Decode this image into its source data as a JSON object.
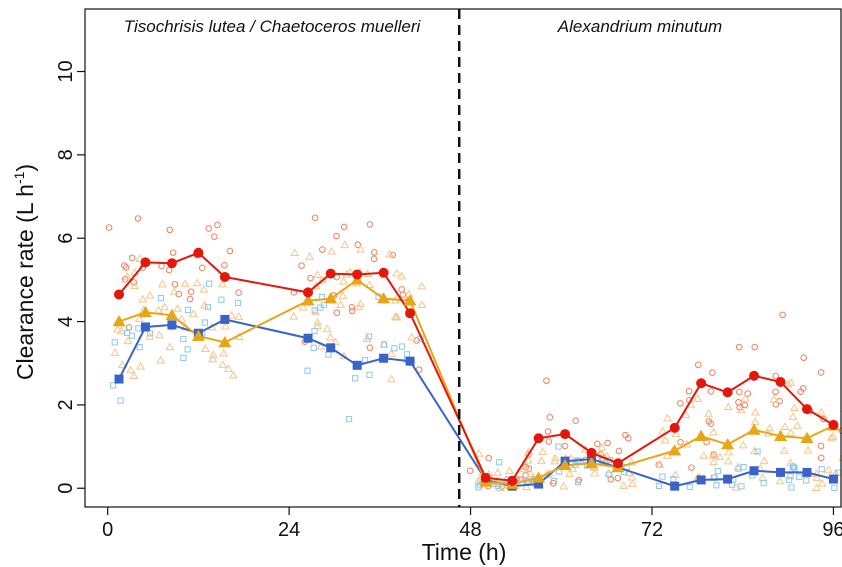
{
  "chart_data": {
    "type": "scatter",
    "xlabel": "Time (h)",
    "ylabel": "Clearance rate (L h⁻¹)",
    "ylabel_main": "Clearance rate (L h",
    "ylabel_sup": "-1",
    "ylabel_close": ")",
    "xlim": [
      -3,
      97
    ],
    "ylim": [
      -0.45,
      11.5
    ],
    "xticks": [
      0,
      24,
      48,
      72,
      96
    ],
    "yticks": [
      0,
      2,
      4,
      6,
      8,
      10
    ],
    "grid": false,
    "legend": "none",
    "divider_x": 46.5,
    "panels": [
      {
        "label": "Tisochrisis lutea / Chaetoceros muelleri"
      },
      {
        "label": "Alexandrium minutum"
      }
    ],
    "colors": {
      "red": "#e3170a",
      "orange": "#e8a617",
      "blue": "#3a63c8",
      "red_light": "#f08060",
      "orange_light": "#f7c58a",
      "blue_light": "#8cc8ee"
    },
    "series": [
      {
        "marker": "circle",
        "color": "#e3170a",
        "x": [
          1.5,
          5,
          8.5,
          12,
          15.5,
          26.5,
          29.5,
          33,
          36.5,
          40,
          50,
          53.5,
          57,
          60.5,
          64,
          67.5,
          75,
          78.5,
          82,
          85.5,
          89,
          92.5,
          96
        ],
        "y": [
          4.65,
          5.42,
          5.4,
          5.65,
          5.07,
          4.7,
          5.15,
          5.13,
          5.17,
          4.2,
          0.25,
          0.18,
          1.2,
          1.3,
          0.85,
          0.6,
          1.45,
          2.52,
          2.3,
          2.7,
          2.55,
          1.9,
          1.52
        ]
      },
      {
        "marker": "triangle",
        "color": "#e8a617",
        "x": [
          1.5,
          5,
          8.5,
          12,
          15.5,
          26.5,
          29.5,
          33,
          36.5,
          40,
          50,
          53.5,
          57,
          60.5,
          64,
          67.5,
          75,
          78.5,
          82,
          85.5,
          89,
          92.5,
          96
        ],
        "y": [
          4.0,
          4.22,
          4.15,
          3.65,
          3.5,
          4.5,
          4.55,
          5.0,
          4.55,
          4.5,
          0.15,
          0.1,
          0.25,
          0.55,
          0.6,
          0.5,
          0.9,
          1.25,
          1.05,
          1.4,
          1.25,
          1.2,
          1.5
        ]
      },
      {
        "marker": "square",
        "color": "#3a63c8",
        "x": [
          1.5,
          5,
          8.5,
          12,
          15.5,
          26.5,
          29.5,
          33,
          36.5,
          40,
          50,
          53.5,
          57,
          60.5,
          64,
          67.5,
          75,
          78.5,
          82,
          85.5,
          89,
          92.5,
          96
        ],
        "y": [
          2.62,
          3.87,
          3.92,
          3.72,
          4.05,
          3.6,
          3.37,
          2.95,
          3.12,
          3.05,
          0.2,
          0.05,
          0.1,
          0.65,
          0.7,
          0.5,
          0.05,
          0.2,
          0.22,
          0.42,
          0.38,
          0.38,
          0.22
        ]
      }
    ]
  }
}
